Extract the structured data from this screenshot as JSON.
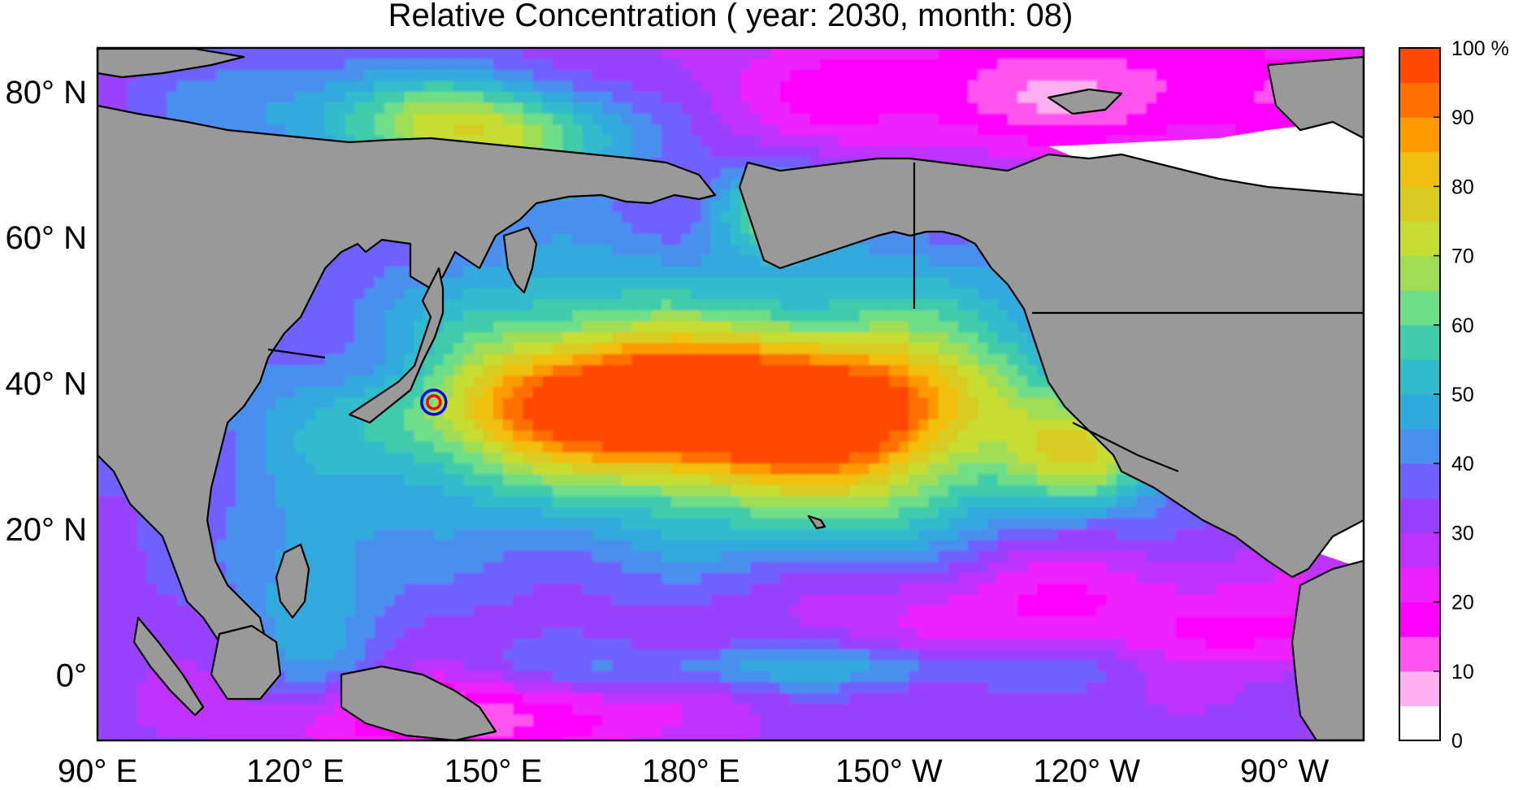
{
  "title": "Relative Concentration ( year: 2030, month: 08)",
  "axes": {
    "lat_labels": [
      {
        "text": "80° N",
        "lat": 80
      },
      {
        "text": "60° N",
        "lat": 60
      },
      {
        "text": "40° N",
        "lat": 40
      },
      {
        "text": "20° N",
        "lat": 20
      },
      {
        "text": "0°",
        "lat": 0
      }
    ],
    "lon_labels": [
      {
        "text": "90° E",
        "lon": 90
      },
      {
        "text": "120° E",
        "lon": 120
      },
      {
        "text": "150° E",
        "lon": 150
      },
      {
        "text": "180° E",
        "lon": 180
      },
      {
        "text": "150° W",
        "lon": 210
      },
      {
        "text": "120° W",
        "lon": 240
      },
      {
        "text": "90° W",
        "lon": 270
      }
    ],
    "lon_range": [
      90,
      282
    ],
    "lat_range": [
      -9,
      86
    ]
  },
  "colorbar": {
    "unit": "%",
    "levels": [
      0,
      5,
      10,
      15,
      20,
      25,
      30,
      35,
      40,
      45,
      50,
      55,
      60,
      65,
      70,
      75,
      80,
      85,
      90,
      95,
      100
    ],
    "tick_labels": [
      "0",
      "10",
      "20",
      "30",
      "40",
      "50",
      "60",
      "70",
      "80",
      "90",
      "100 %"
    ],
    "colors": [
      "#ffffff",
      "#ffb0f0",
      "#ff55ee",
      "#ff00ff",
      "#ee20ff",
      "#c030ff",
      "#9a40ff",
      "#7060ff",
      "#4a90ee",
      "#30aadd",
      "#30bbcc",
      "#40ccaa",
      "#70dd88",
      "#a0dd55",
      "#c8dd33",
      "#d8cc22",
      "#f0c010",
      "#ff9a00",
      "#ff7000",
      "#ff4a00"
    ]
  },
  "colors": {
    "land": "#999999",
    "coastline": "#000000",
    "marker_inner": "#ff0000",
    "marker_outer": "#0000ff"
  },
  "marker": {
    "name": "source-location",
    "lon": 141.0,
    "lat": 37.4
  },
  "field": {
    "base_value": 32,
    "blobs": [
      {
        "lon": 182,
        "lat": 37,
        "slon": 26,
        "slat": 6,
        "amp": 62
      },
      {
        "lon": 178,
        "lat": 33,
        "slon": 42,
        "slat": 12,
        "amp": 28
      },
      {
        "lon": 205,
        "lat": 28,
        "slon": 14,
        "slat": 9,
        "amp": 18
      },
      {
        "lon": 240,
        "lat": 30,
        "slon": 8,
        "slat": 5,
        "amp": 30
      },
      {
        "lon": 160,
        "lat": 50,
        "slon": 20,
        "slat": 9,
        "amp": 14
      },
      {
        "lon": 215,
        "lat": 50,
        "slon": 20,
        "slat": 10,
        "amp": 14
      },
      {
        "lon": 150,
        "lat": 74,
        "slon": 15,
        "slat": 5,
        "amp": 38
      },
      {
        "lon": 125,
        "lat": 78,
        "slon": 18,
        "slat": 5,
        "amp": 14
      },
      {
        "lon": 192,
        "lat": 64,
        "slon": 6,
        "slat": 4,
        "amp": 28
      },
      {
        "lon": 200,
        "lat": 1,
        "slon": 30,
        "slat": 2.2,
        "amp": 16
      },
      {
        "lon": 220,
        "lat": 80,
        "slon": 30,
        "slat": 6,
        "amp": -14
      },
      {
        "lon": 260,
        "lat": 80,
        "slon": 30,
        "slat": 7,
        "amp": -12
      },
      {
        "lon": 230,
        "lat": 10,
        "slon": 28,
        "slat": 6,
        "amp": -14
      },
      {
        "lon": 145,
        "lat": -6,
        "slon": 22,
        "slat": 4,
        "amp": -20
      },
      {
        "lon": 270,
        "lat": 5,
        "slon": 12,
        "slat": 4,
        "amp": -10
      },
      {
        "lon": 135,
        "lat": 42,
        "slon": 8,
        "slat": 4,
        "amp": -10
      },
      {
        "lon": 122,
        "lat": 10,
        "slon": 8,
        "slat": 10,
        "amp": 16
      }
    ]
  }
}
